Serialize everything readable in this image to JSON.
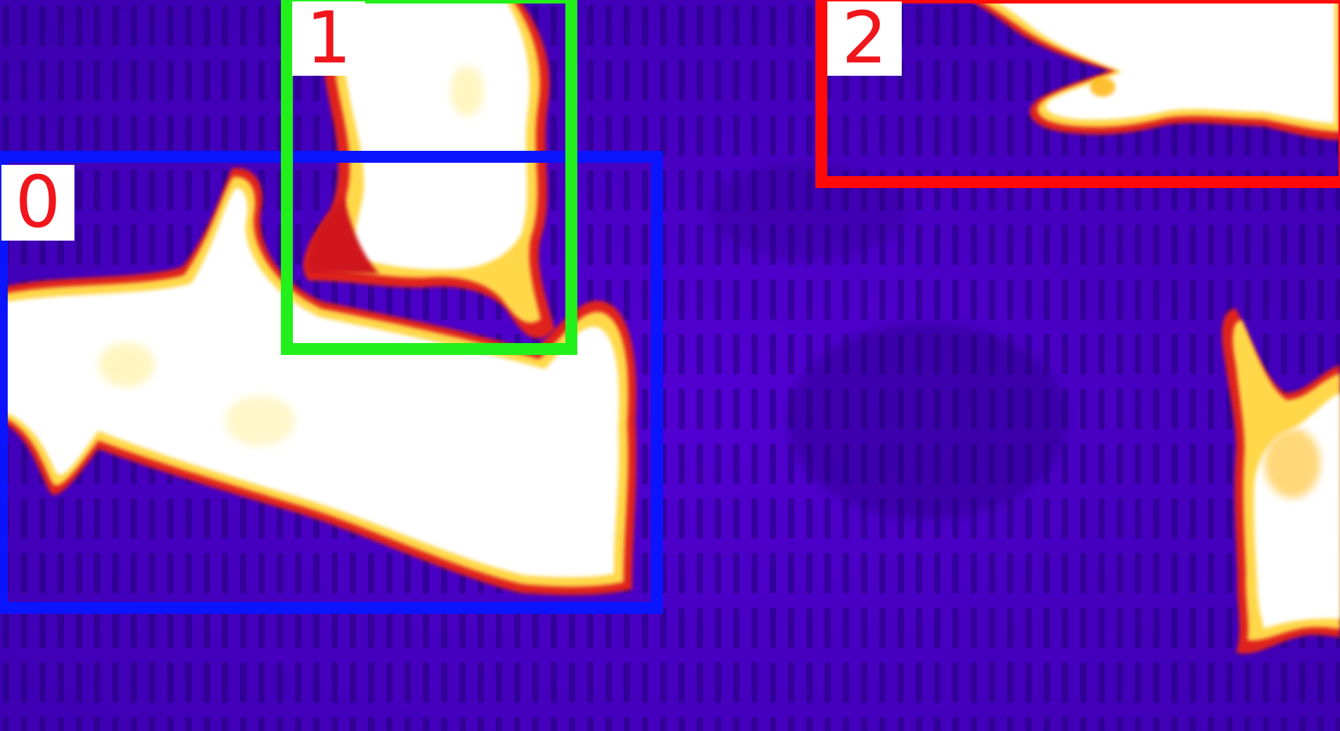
{
  "colors": {
    "background_cold": "#4a00c8",
    "hot_core": "#ffffff",
    "hot_mid": "#ffd84a",
    "hot_edge": "#e0201e",
    "box_0": "#0a14ff",
    "box_1": "#22f01a",
    "box_2": "#ff0a0a",
    "label_text": "#f0161c"
  },
  "detections": [
    {
      "id": "0",
      "color_key": "box_0"
    },
    {
      "id": "1",
      "color_key": "box_1"
    },
    {
      "id": "2",
      "color_key": "box_2"
    }
  ]
}
